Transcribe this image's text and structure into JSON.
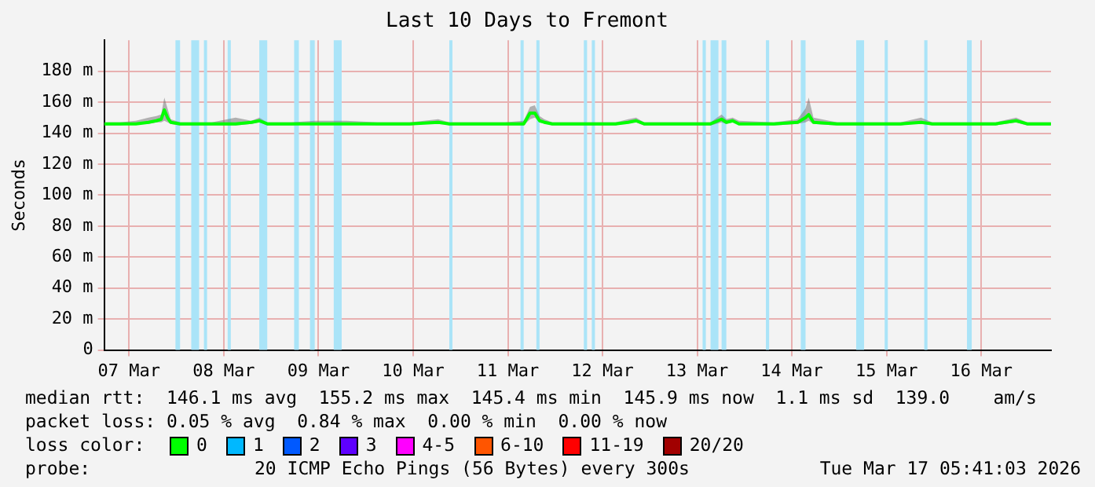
{
  "chart_data": {
    "type": "line",
    "title": "Last 10 Days to Fremont",
    "ylabel": "Seconds",
    "xlim": [
      "2026-03-07T05:41",
      "2026-03-17T05:41"
    ],
    "xticks": [
      {
        "value": "2026-03-07T12:00",
        "label": "07 Mar"
      },
      {
        "value": "2026-03-08T12:00",
        "label": "08 Mar"
      },
      {
        "value": "2026-03-09T12:00",
        "label": "09 Mar"
      },
      {
        "value": "2026-03-10T12:00",
        "label": "10 Mar"
      },
      {
        "value": "2026-03-11T12:00",
        "label": "11 Mar"
      },
      {
        "value": "2026-03-12T12:00",
        "label": "12 Mar"
      },
      {
        "value": "2026-03-13T12:00",
        "label": "13 Mar"
      },
      {
        "value": "2026-03-14T12:00",
        "label": "14 Mar"
      },
      {
        "value": "2026-03-15T12:00",
        "label": "15 Mar"
      },
      {
        "value": "2026-03-16T12:00",
        "label": "16 Mar"
      }
    ],
    "ylim": [
      0,
      200
    ],
    "yticks": [
      0,
      {
        "value": 20,
        "label": "20 m"
      },
      {
        "value": 40,
        "label": "40 m"
      },
      {
        "value": 60,
        "label": "60 m"
      },
      {
        "value": 80,
        "label": "80 m"
      },
      {
        "value": 100,
        "label": "100 m"
      },
      {
        "value": 120,
        "label": "120 m"
      },
      {
        "value": 140,
        "label": "140 m"
      },
      {
        "value": 160,
        "label": "160 m"
      },
      {
        "value": 180,
        "label": "180 m"
      }
    ],
    "grid": true,
    "legend": false,
    "marker": "none",
    "line_style": "solid",
    "x": [
      "2026-03-07T05:41",
      "2026-03-07T09:41",
      "2026-03-07T13:43",
      "2026-03-07T16:55",
      "2026-03-07T18:55",
      "2026-03-07T20:08",
      "2026-03-07T20:56",
      "2026-03-07T21:44",
      "2026-03-07T22:32",
      "2026-03-08T00:56",
      "2026-03-08T04:58",
      "2026-03-08T08:58",
      "2026-03-08T14:59",
      "2026-03-08T19:00",
      "2026-03-08T21:01",
      "2026-03-08T23:01",
      "2026-03-09T05:02",
      "2026-03-09T11:03",
      "2026-03-09T19:05",
      "2026-03-10T03:06",
      "2026-03-10T11:08",
      "2026-03-10T18:21",
      "2026-03-10T21:10",
      "2026-03-11T03:11",
      "2026-03-11T11:13",
      "2026-03-11T16:01",
      "2026-03-11T17:38",
      "2026-03-11T18:50",
      "2026-03-11T20:02",
      "2026-03-11T21:14",
      "2026-03-11T23:15",
      "2026-03-12T07:16",
      "2026-03-12T15:18",
      "2026-03-12T18:31",
      "2026-03-12T20:31",
      "2026-03-12T22:32",
      "2026-03-13T07:21",
      "2026-03-13T15:23",
      "2026-03-13T18:11",
      "2026-03-13T19:23",
      "2026-03-13T20:59",
      "2026-03-13T22:36",
      "2026-03-14T07:26",
      "2026-03-14T13:27",
      "2026-03-14T15:28",
      "2026-03-14T16:16",
      "2026-03-14T17:28",
      "2026-03-14T23:29",
      "2026-03-15T07:31",
      "2026-03-15T15:32",
      "2026-03-15T20:45",
      "2026-03-15T23:34",
      "2026-03-16T07:35",
      "2026-03-16T15:37",
      "2026-03-16T20:50",
      "2026-03-16T23:38",
      "2026-03-17T05:40"
    ],
    "series": [
      {
        "color": "#00ff00",
        "values": [
          146,
          146,
          146,
          147,
          148,
          149,
          155,
          150,
          147,
          146,
          146,
          146,
          146,
          147,
          148,
          146,
          146,
          146,
          146,
          146,
          146,
          147,
          146,
          146,
          146,
          146,
          153,
          153,
          148,
          147,
          146,
          146,
          146,
          147,
          148,
          146,
          146,
          146,
          149,
          147,
          148,
          146,
          146,
          147,
          150,
          152,
          147,
          146,
          146,
          146,
          147,
          146,
          146,
          146,
          148,
          146,
          146
        ],
        "lower": [
          145,
          145,
          146,
          146,
          147,
          147,
          148,
          147,
          146,
          145,
          145,
          145,
          145,
          146,
          147,
          145,
          145,
          146,
          146,
          145,
          145,
          147,
          145,
          145,
          145,
          145,
          149,
          150,
          147,
          147,
          145,
          145,
          145,
          147,
          147,
          145,
          145,
          145,
          147,
          146,
          147,
          146,
          145,
          146,
          147,
          148,
          146,
          145,
          145,
          145,
          147,
          145,
          145,
          145,
          147,
          145,
          145
        ],
        "upper": [
          147,
          147,
          148,
          150,
          151,
          152,
          163,
          156,
          149,
          147,
          147,
          147,
          150,
          148,
          150,
          147,
          147,
          148,
          148,
          147,
          147,
          149,
          147,
          147,
          147,
          148,
          157,
          158,
          151,
          149,
          147,
          147,
          147,
          149,
          150,
          147,
          147,
          147,
          152,
          149,
          150,
          148,
          147,
          149,
          156,
          163,
          150,
          147,
          147,
          147,
          150,
          147,
          147,
          147,
          150,
          147,
          147
        ]
      }
    ],
    "bands": [
      {
        "axis": "x",
        "from": "2026-03-07T23:45",
        "to": "2026-03-08T00:55",
        "color": "#aae4f8"
      },
      {
        "axis": "x",
        "from": "2026-03-08T03:45",
        "to": "2026-03-08T05:45",
        "color": "#aae4f8"
      },
      {
        "axis": "x",
        "from": "2026-03-08T06:58",
        "to": "2026-03-08T07:46",
        "color": "#aae4f8"
      },
      {
        "axis": "x",
        "from": "2026-03-08T12:59",
        "to": "2026-03-08T13:47",
        "color": "#aae4f8"
      },
      {
        "axis": "x",
        "from": "2026-03-08T21:00",
        "to": "2026-03-08T23:01",
        "color": "#aae4f8"
      },
      {
        "axis": "x",
        "from": "2026-03-09T05:50",
        "to": "2026-03-09T07:02",
        "color": "#aae4f8"
      },
      {
        "axis": "x",
        "from": "2026-03-09T09:51",
        "to": "2026-03-09T11:03",
        "color": "#aae4f8"
      },
      {
        "axis": "x",
        "from": "2026-03-09T15:52",
        "to": "2026-03-09T17:53",
        "color": "#aae4f8"
      },
      {
        "axis": "x",
        "from": "2026-03-10T21:10",
        "to": "2026-03-10T21:58",
        "color": "#aae4f8"
      },
      {
        "axis": "x",
        "from": "2026-03-11T15:13",
        "to": "2026-03-11T16:01",
        "color": "#aae4f8"
      },
      {
        "axis": "x",
        "from": "2026-03-11T19:14",
        "to": "2026-03-11T20:02",
        "color": "#aae4f8"
      },
      {
        "axis": "x",
        "from": "2026-03-12T07:16",
        "to": "2026-03-12T08:05",
        "color": "#aae4f8"
      },
      {
        "axis": "x",
        "from": "2026-03-12T09:17",
        "to": "2026-03-12T10:05",
        "color": "#aae4f8"
      },
      {
        "axis": "x",
        "from": "2026-03-13T13:22",
        "to": "2026-03-13T14:11",
        "color": "#aae4f8"
      },
      {
        "axis": "x",
        "from": "2026-03-13T15:23",
        "to": "2026-03-13T17:23",
        "color": "#aae4f8"
      },
      {
        "axis": "x",
        "from": "2026-03-13T18:11",
        "to": "2026-03-13T19:23",
        "color": "#aae4f8"
      },
      {
        "axis": "x",
        "from": "2026-03-14T05:25",
        "to": "2026-03-14T06:14",
        "color": "#aae4f8"
      },
      {
        "axis": "x",
        "from": "2026-03-14T14:15",
        "to": "2026-03-14T15:28",
        "color": "#aae4f8"
      },
      {
        "axis": "x",
        "from": "2026-03-15T04:18",
        "to": "2026-03-15T06:18",
        "color": "#aae4f8"
      },
      {
        "axis": "x",
        "from": "2026-03-15T11:31",
        "to": "2026-03-15T12:19",
        "color": "#aae4f8"
      },
      {
        "axis": "x",
        "from": "2026-03-15T21:33",
        "to": "2026-03-15T22:22",
        "color": "#aae4f8"
      },
      {
        "axis": "x",
        "from": "2026-03-16T08:23",
        "to": "2026-03-16T09:35",
        "color": "#aae4f8"
      }
    ],
    "annotations": [
      "median rtt:  146.1 ms avg  155.2 ms max  145.4 ms min  145.9 ms now  1.1 ms sd  139.0    am/s",
      "packet loss: 0.05 % avg  0.84 % max  0.00 % min  0.00 % now",
      "loss color:",
      "0",
      "1",
      "2",
      "3",
      "4-5",
      "6-10",
      "11-19",
      "20/20",
      "probe:",
      "20 ICMP Echo Pings (56 Bytes) every 300s",
      "Tue Mar 17 05:41:03 2026"
    ]
  }
}
